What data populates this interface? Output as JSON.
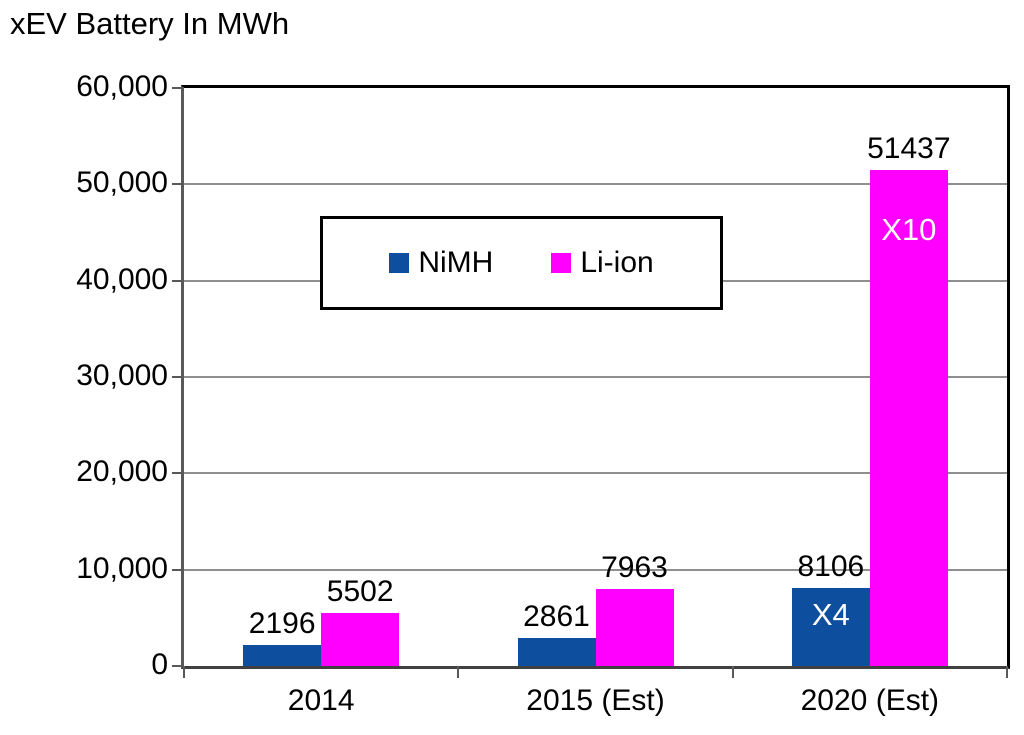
{
  "title": "xEV Battery In MWh",
  "colors": {
    "nimh": "#0D4E9E",
    "liion": "#FF00FF",
    "gridline": "#8F8F8F",
    "axis": "#595959",
    "frame": "#000000",
    "annotation_text": "#FFFFFF",
    "background": "#FFFFFF"
  },
  "legend": {
    "items": [
      {
        "label": "NiMH",
        "color": "#0D4E9E"
      },
      {
        "label": "Li-ion",
        "color": "#FF00FF"
      }
    ]
  },
  "chart_data": {
    "type": "bar",
    "title": "xEV Battery In MWh",
    "categories": [
      "2014",
      "2015 (Est)",
      "2020 (Est)"
    ],
    "series": [
      {
        "name": "NiMH",
        "color": "#0D4E9E",
        "values": [
          2196,
          2861,
          8106
        ]
      },
      {
        "name": "Li-ion",
        "color": "#FF00FF",
        "values": [
          5502,
          7963,
          51437
        ]
      }
    ],
    "data_labels_visible": true,
    "annotations": [
      {
        "series": "NiMH",
        "category": "2020 (Est)",
        "text": "X4"
      },
      {
        "series": "Li-ion",
        "category": "2020 (Est)",
        "text": "X10"
      }
    ],
    "xlabel": "",
    "ylabel": "",
    "ylim": [
      0,
      60000
    ],
    "y_tick_step": 10000,
    "y_tick_labels": [
      "0",
      "10,000",
      "20,000",
      "30,000",
      "40,000",
      "50,000",
      "60,000"
    ],
    "grid": true,
    "legend_position": "inside-top-center"
  }
}
